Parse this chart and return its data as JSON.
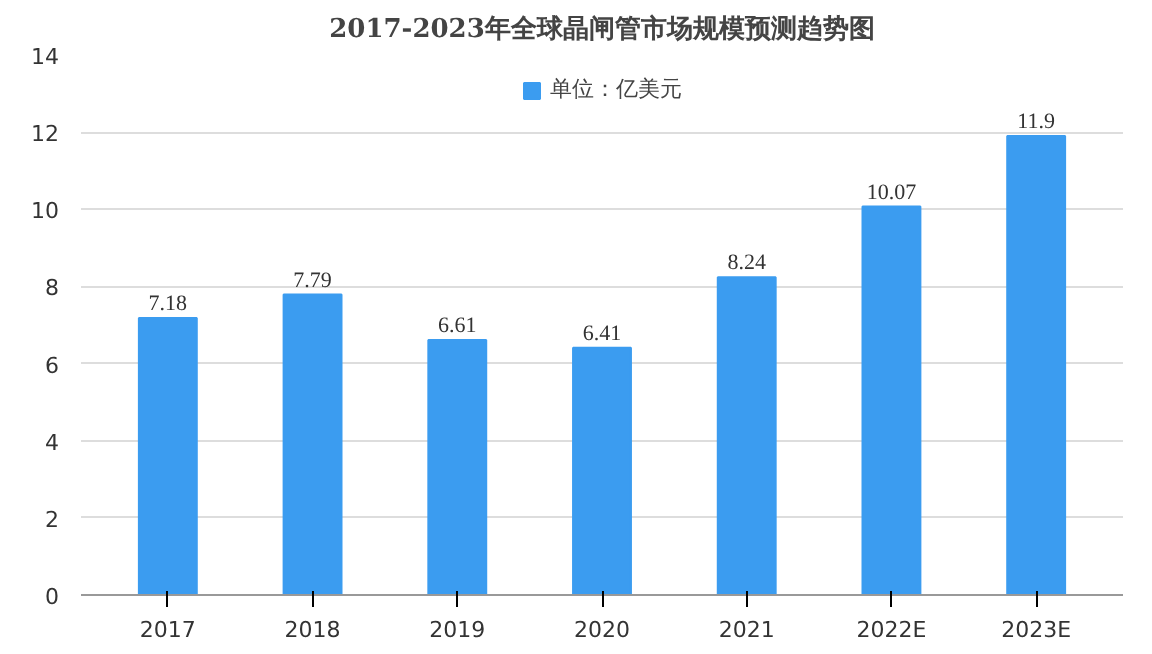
{
  "chart_data": {
    "type": "bar",
    "title": "2017-2023年全球晶闸管市场规模预测趋势图",
    "categories": [
      "2017",
      "2018",
      "2019",
      "2020",
      "2021",
      "2022E",
      "2023E"
    ],
    "series": [
      {
        "name": "单位：亿美元",
        "color": "#3b9cf0",
        "values": [
          7.18,
          7.79,
          6.61,
          6.41,
          8.24,
          10.07,
          11.9
        ]
      }
    ],
    "ylim": [
      0,
      14
    ],
    "yticks": [
      0,
      2,
      4,
      6,
      8,
      10,
      12,
      14
    ],
    "grid": "y",
    "legend": "top",
    "data_labels": true
  }
}
